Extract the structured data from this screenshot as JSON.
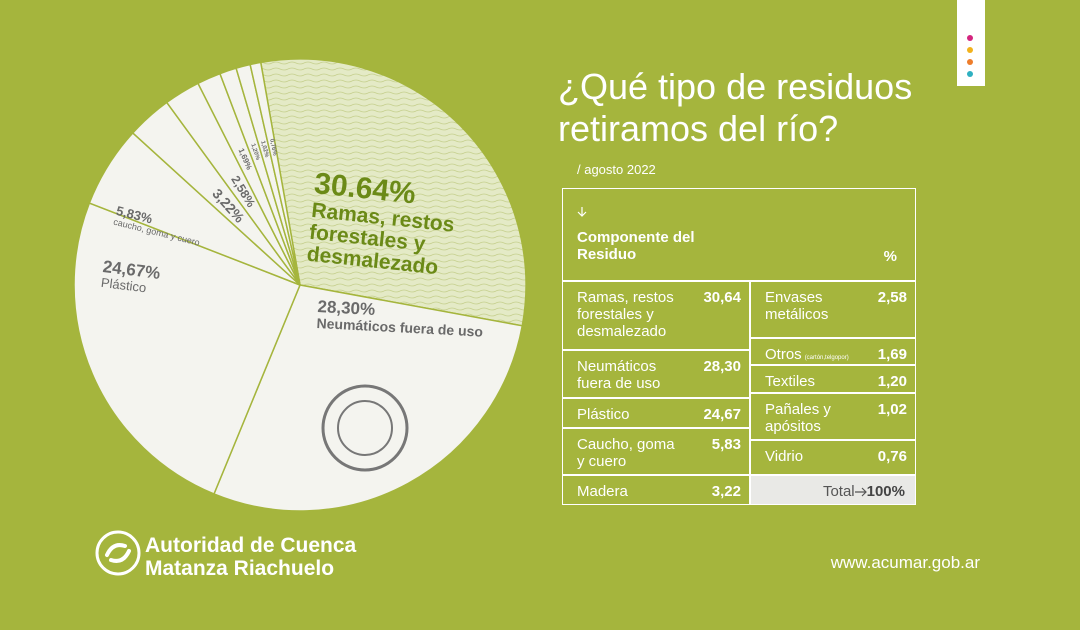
{
  "chart_data": {
    "type": "pie",
    "categories": [
      "Ramas, restos forestales y desmalezado",
      "Neumáticos fuera de uso",
      "Plástico",
      "caucho, goma y cuero",
      null,
      null,
      null,
      null,
      null,
      null
    ],
    "values": [
      30.64,
      28.3,
      24.67,
      5.83,
      3.22,
      2.58,
      1.69,
      1.2,
      1.02,
      0.76
    ],
    "value_labels": [
      "30.64%",
      "28,30%",
      "24,67%",
      "5,83%",
      "3,22%",
      "2,58%",
      "1,69%",
      "1,20%",
      "1,02%",
      "0,76%"
    ],
    "colors": [
      "#e4eac6",
      "#f4f4ef",
      "#f4f4ef",
      "#f4f4ef",
      "#f4f4ef",
      "#f4f4ef",
      "#f4f4ef",
      "#f4f4ef",
      "#f4f4ef",
      "#f4f4ef"
    ]
  },
  "header": {
    "title": "¿Qué tipo de residuos retiramos del río?",
    "subtitle": "/ agosto 2022"
  },
  "table": {
    "columns": [
      "Componente del Residuo",
      "%"
    ],
    "left": [
      {
        "label": "Ramas, restos forestales y desmalezado",
        "value": "30,64"
      },
      {
        "label": "Neumáticos fuera de uso",
        "value": "28,30"
      },
      {
        "label": "Plástico",
        "value": "24,67"
      },
      {
        "label": "Caucho, goma y cuero",
        "value": "5,83"
      },
      {
        "label": "Madera",
        "value": "3,22"
      }
    ],
    "right": [
      {
        "label": "Envases metálicos",
        "value": "2,58"
      },
      {
        "label": "Otros",
        "note": "(cartón,telgopor)",
        "value": "1,69"
      },
      {
        "label": "Textiles",
        "value": "1,20"
      },
      {
        "label": "Pañales y apósitos",
        "value": "1,02"
      },
      {
        "label": "Vidrio",
        "value": "0,76"
      }
    ],
    "total": {
      "label": "Total",
      "value": "100%"
    }
  },
  "footer": {
    "org": [
      "Autoridad de Cuenca",
      "Matanza Riachuelo"
    ],
    "url": "www.acumar.gob.ar"
  }
}
